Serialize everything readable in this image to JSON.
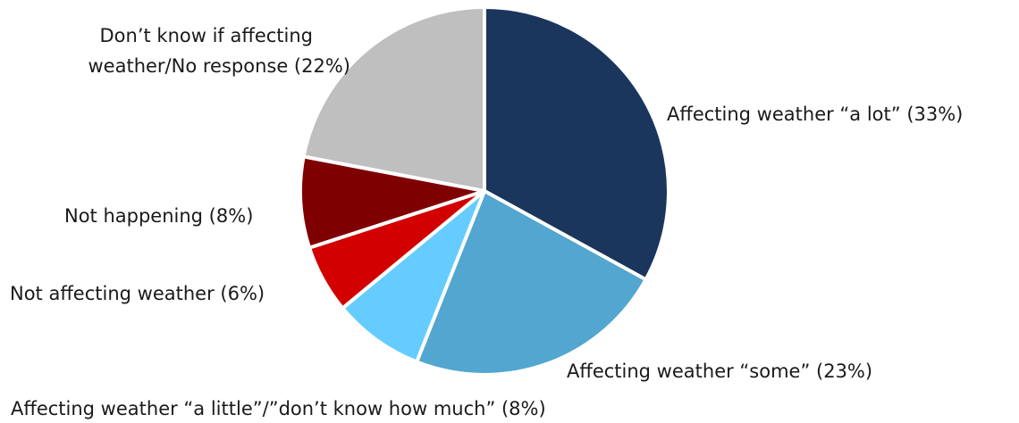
{
  "chart_data": {
    "type": "pie",
    "title": "",
    "slices": [
      {
        "label": "Affecting weather “a lot” (33%)",
        "value": 33,
        "color": "#1b365d"
      },
      {
        "label": "Affecting weather “some” (23%)",
        "value": 23,
        "color": "#52a6cf"
      },
      {
        "label": "Affecting weather “a little”/”don’t know how much” (8%)",
        "value": 8,
        "color": "#66ccff"
      },
      {
        "label": "Not affecting weather (6%)",
        "value": 6,
        "color": "#d20000"
      },
      {
        "label": "Not happening (8%)",
        "value": 8,
        "color": "#7f0000"
      },
      {
        "label_lines": [
          "Don’t know if affecting",
          "weather/No response (22%)"
        ],
        "value": 22,
        "color": "#bfbfbf"
      }
    ],
    "start_angle": "12 o'clock",
    "direction": "clockwise",
    "legend": "none"
  }
}
